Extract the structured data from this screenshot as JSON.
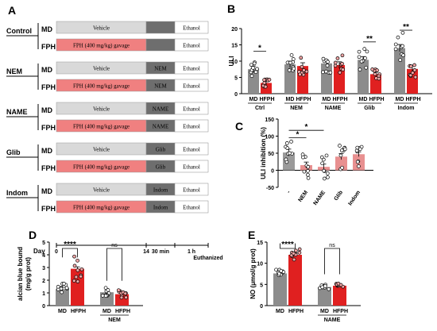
{
  "panels": {
    "A": {
      "letter": "A",
      "groups": [
        {
          "name": "Control",
          "rows": [
            {
              "label": "MD",
              "pre": "Vehicle",
              "pre_color": "#d9d9d9",
              "treat": "",
              "post": "Ethanol"
            },
            {
              "label": "FPH",
              "pre": "FPH (400 mg/kg) gavage",
              "pre_color": "#f08080",
              "treat": "",
              "post": "Ethanol"
            }
          ]
        },
        {
          "name": "NEM",
          "rows": [
            {
              "label": "MD",
              "pre": "Vehicle",
              "pre_color": "#d9d9d9",
              "treat": "NEM",
              "post": "Ethanol"
            },
            {
              "label": "FPH",
              "pre": "FPH (400 mg/kg) gavage",
              "pre_color": "#f08080",
              "treat": "NEM",
              "post": "Ethanol"
            }
          ]
        },
        {
          "name": "NAME",
          "rows": [
            {
              "label": "MD",
              "pre": "Vehicle",
              "pre_color": "#d9d9d9",
              "treat": "NAME",
              "post": "Ethanol"
            },
            {
              "label": "FPH",
              "pre": "FPH (400 mg/kg) gavage",
              "pre_color": "#f08080",
              "treat": "NAME",
              "post": "Ethanol"
            }
          ]
        },
        {
          "name": "Glib",
          "rows": [
            {
              "label": "MD",
              "pre": "Vehicle",
              "pre_color": "#d9d9d9",
              "treat": "Glib",
              "post": "Ethanol"
            },
            {
              "label": "FPH",
              "pre": "FPH (400 mg/kg) gavage",
              "pre_color": "#f08080",
              "treat": "Glib",
              "post": "Ethanol"
            }
          ]
        },
        {
          "name": "Indom",
          "rows": [
            {
              "label": "MD",
              "pre": "Vehicle",
              "pre_color": "#d9d9d9",
              "treat": "Indom",
              "post": "Ethanol"
            },
            {
              "label": "FPH",
              "pre": "FPH (400 mg/kg) gavage",
              "pre_color": "#f08080",
              "treat": "Indom",
              "post": "Ethanol"
            }
          ]
        }
      ],
      "timeline": {
        "day_label": "Day",
        "day0": "0",
        "day14": "14",
        "t1": "30 min",
        "t2": "1 h",
        "end": "Euthanized"
      }
    }
  },
  "colors": {
    "md_bar": "#8c8c8c",
    "hfph_bar": "#e02020",
    "hfph_light": "#f4a6a6",
    "gray_box": "#6e6e6e"
  },
  "chart_data": [
    {
      "panel": "B",
      "type": "bar",
      "ylabel": "ULI",
      "ylim": [
        0,
        20
      ],
      "yticks": [
        0,
        5,
        10,
        15,
        20
      ],
      "pairs": [
        "MD",
        "HFPH"
      ],
      "groups": [
        {
          "name": "Ctrl",
          "values": [
            7.5,
            3.3
          ],
          "err": [
            1.0,
            0.7
          ],
          "sig": "*"
        },
        {
          "name": "NEM",
          "values": [
            9.0,
            8.5
          ],
          "err": [
            1.0,
            1.0
          ],
          "sig": ""
        },
        {
          "name": "NAME",
          "values": [
            9.3,
            8.8
          ],
          "err": [
            1.0,
            1.0
          ],
          "sig": ""
        },
        {
          "name": "Glib",
          "values": [
            10.4,
            6.0
          ],
          "err": [
            1.0,
            0.6
          ],
          "sig": "**"
        },
        {
          "name": "Indom",
          "values": [
            14.0,
            7.6
          ],
          "err": [
            1.1,
            0.9
          ],
          "sig": "**"
        }
      ]
    },
    {
      "panel": "C",
      "type": "bar",
      "ylabel": "ULI inhibition (%)",
      "ylim": [
        -50,
        150
      ],
      "yticks": [
        -50,
        0,
        50,
        100,
        150
      ],
      "categories": [
        "-",
        "NEM",
        "NAME",
        "Glib",
        "Indom"
      ],
      "values": [
        52,
        15,
        10,
        40,
        47
      ],
      "err": [
        10,
        9,
        8,
        9,
        7
      ],
      "sig": [
        {
          "from": 0,
          "to": 1,
          "label": "*"
        },
        {
          "from": 0,
          "to": 2,
          "label": "*"
        }
      ]
    },
    {
      "panel": "D",
      "type": "bar",
      "ylabel": "alcian blue bound\n(mg/g prot)",
      "ylim": [
        0,
        5
      ],
      "yticks": [
        0,
        1,
        2,
        3,
        4,
        5
      ],
      "pairs": [
        "MD",
        "HFPH"
      ],
      "groups": [
        {
          "name": "",
          "values": [
            1.3,
            2.9
          ],
          "err": [
            0.2,
            0.15
          ],
          "sig": "****"
        },
        {
          "name": "NEM",
          "values": [
            1.05,
            0.9
          ],
          "err": [
            0.1,
            0.15
          ],
          "sig": "ns"
        }
      ]
    },
    {
      "panel": "E",
      "type": "bar",
      "ylabel": "NO (μmol/g prot)",
      "ylim": [
        0,
        15
      ],
      "yticks": [
        0,
        5,
        10,
        15
      ],
      "pairs": [
        "MD",
        "HFPH"
      ],
      "groups": [
        {
          "name": "",
          "values": [
            7.6,
            12.0
          ],
          "err": [
            0.5,
            0.4
          ],
          "sig": "****"
        },
        {
          "name": "NAME",
          "values": [
            4.4,
            4.7
          ],
          "err": [
            0.3,
            0.3
          ],
          "sig": "ns"
        }
      ]
    }
  ]
}
